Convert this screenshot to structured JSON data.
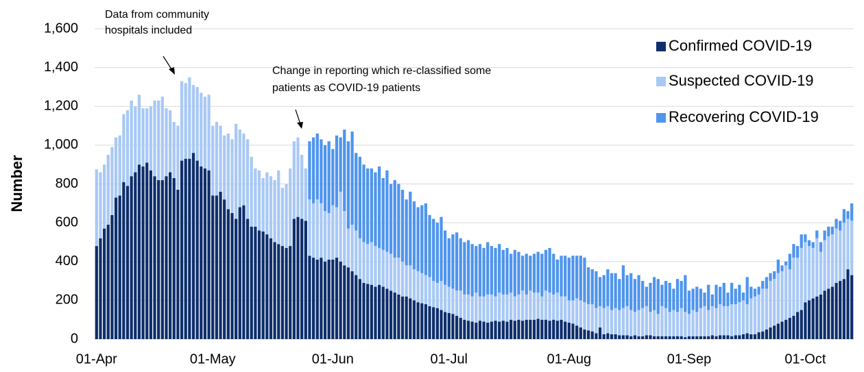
{
  "chart_data": {
    "type": "stacked_bar",
    "y_label": "Number",
    "ylim": [
      0,
      1600
    ],
    "yticks": [
      0,
      200,
      400,
      600,
      800,
      {
        "value": 1000,
        "label": "1,000"
      },
      {
        "value": 1200,
        "label": "1,200"
      },
      {
        "value": 1400,
        "label": "1,400"
      },
      {
        "value": 1600,
        "label": "1,600"
      }
    ],
    "grid": true,
    "legend": "right",
    "annotations": [
      {
        "lines": [
          "Data from community",
          "hospitals included"
        ]
      },
      {
        "lines": [
          "Change in reporting which re-classified some",
          "patients as COVID-19 patients"
        ]
      }
    ],
    "categories": [
      "01-Apr",
      null,
      null,
      null,
      null,
      null,
      null,
      null,
      null,
      null,
      null,
      null,
      null,
      null,
      null,
      null,
      null,
      null,
      null,
      null,
      null,
      null,
      null,
      null,
      null,
      null,
      null,
      null,
      null,
      null,
      "01-May",
      null,
      null,
      null,
      null,
      null,
      null,
      null,
      null,
      null,
      null,
      null,
      null,
      null,
      null,
      null,
      null,
      null,
      null,
      null,
      null,
      null,
      null,
      null,
      null,
      null,
      null,
      null,
      null,
      null,
      null,
      "01-Jun",
      null,
      null,
      null,
      null,
      null,
      null,
      null,
      null,
      null,
      null,
      null,
      null,
      null,
      null,
      null,
      null,
      null,
      null,
      null,
      null,
      null,
      null,
      null,
      null,
      null,
      null,
      null,
      null,
      null,
      "01-Jul",
      null,
      null,
      null,
      null,
      null,
      null,
      null,
      null,
      null,
      null,
      null,
      null,
      null,
      null,
      null,
      null,
      null,
      null,
      null,
      null,
      null,
      null,
      null,
      null,
      null,
      null,
      null,
      null,
      null,
      null,
      "01-Aug",
      null,
      null,
      null,
      null,
      null,
      null,
      null,
      null,
      null,
      null,
      null,
      null,
      null,
      null,
      null,
      null,
      null,
      null,
      null,
      null,
      null,
      null,
      null,
      null,
      null,
      null,
      null,
      null,
      null,
      null,
      "01-Sep",
      null,
      null,
      null,
      null,
      null,
      null,
      null,
      null,
      null,
      null,
      null,
      null,
      null,
      null,
      null,
      null,
      null,
      null,
      null,
      null,
      null,
      null,
      null,
      null,
      null,
      null,
      null,
      null,
      null,
      "01-Oct",
      null,
      null,
      null,
      null,
      null,
      null,
      null,
      null,
      null,
      null,
      null,
      null
    ],
    "series": [
      {
        "name": "Confirmed COVID-19",
        "color": "#0e2f6b",
        "values": [
          480,
          520,
          570,
          590,
          640,
          730,
          740,
          810,
          790,
          840,
          860,
          900,
          890,
          910,
          870,
          840,
          820,
          820,
          840,
          860,
          830,
          770,
          920,
          930,
          930,
          960,
          920,
          890,
          880,
          870,
          740,
          740,
          760,
          720,
          670,
          650,
          620,
          680,
          690,
          620,
          580,
          580,
          560,
          555,
          540,
          520,
          500,
          490,
          480,
          470,
          480,
          620,
          630,
          620,
          610,
          430,
          420,
          410,
          420,
          400,
          410,
          410,
          420,
          400,
          380,
          370,
          350,
          330,
          310,
          290,
          285,
          280,
          270,
          280,
          270,
          260,
          250,
          240,
          230,
          220,
          220,
          210,
          200,
          190,
          185,
          180,
          170,
          165,
          160,
          150,
          140,
          135,
          130,
          120,
          110,
          100,
          95,
          90,
          85,
          95,
          90,
          85,
          90,
          95,
          90,
          95,
          90,
          100,
          95,
          100,
          95,
          100,
          100,
          100,
          105,
          100,
          100,
          95,
          100,
          95,
          100,
          90,
          85,
          80,
          70,
          60,
          50,
          45,
          40,
          30,
          60,
          25,
          30,
          25,
          25,
          20,
          20,
          20,
          15,
          20,
          15,
          15,
          20,
          20,
          15,
          15,
          15,
          15,
          15,
          15,
          15,
          15,
          10,
          15,
          15,
          15,
          15,
          15,
          15,
          20,
          15,
          20,
          20,
          20,
          15,
          20,
          20,
          25,
          30,
          25,
          25,
          35,
          40,
          50,
          60,
          70,
          80,
          90,
          100,
          110,
          120,
          140,
          150,
          190,
          200,
          210,
          220,
          230,
          250,
          260,
          270,
          290,
          300,
          310,
          360,
          330
        ]
      },
      {
        "name": "Suspected COVID-19",
        "color": "#a9c9f5",
        "values": [
          395,
          340,
          330,
          360,
          350,
          310,
          310,
          350,
          390,
          390,
          340,
          360,
          300,
          280,
          330,
          390,
          410,
          430,
          350,
          320,
          290,
          330,
          410,
          390,
          420,
          350,
          380,
          380,
          370,
          390,
          360,
          380,
          340,
          330,
          390,
          380,
          490,
          400,
          370,
          410,
          360,
          300,
          310,
          275,
          320,
          320,
          320,
          380,
          300,
          330,
          400,
          400,
          410,
          330,
          270,
          290,
          280,
          310,
          280,
          260,
          240,
          280,
          260,
          360,
          280,
          200,
          240,
          230,
          210,
          210,
          205,
          220,
          210,
          190,
          190,
          190,
          190,
          180,
          190,
          180,
          160,
          170,
          160,
          160,
          155,
          150,
          150,
          135,
          130,
          150,
          140,
          135,
          130,
          130,
          140,
          130,
          135,
          130,
          155,
          125,
          130,
          145,
          140,
          125,
          150,
          135,
          140,
          140,
          125,
          130,
          155,
          130,
          150,
          140,
          135,
          120,
          150,
          145,
          130,
          145,
          120,
          130,
          115,
          120,
          140,
          140,
          140,
          135,
          140,
          130,
          110,
          135,
          140,
          125,
          135,
          130,
          140,
          150,
          135,
          120,
          135,
          145,
          150,
          120,
          135,
          115,
          155,
          145,
          125,
          135,
          125,
          145,
          130,
          115,
          135,
          125,
          145,
          155,
          135,
          150,
          145,
          160,
          150,
          150,
          165,
          160,
          170,
          175,
          150,
          185,
          195,
          195,
          220,
          210,
          240,
          240,
          260,
          260,
          280,
          250,
          300,
          280,
          320,
          310,
          280,
          260,
          300,
          220,
          260,
          270,
          270,
          280,
          260,
          290,
          260,
          280
        ]
      },
      {
        "name": "Recovering COVID-19",
        "color": "#4f95ee",
        "values": [
          null,
          null,
          null,
          null,
          null,
          null,
          null,
          null,
          null,
          null,
          null,
          null,
          null,
          null,
          null,
          null,
          null,
          null,
          null,
          null,
          null,
          null,
          null,
          null,
          null,
          null,
          null,
          null,
          null,
          null,
          null,
          null,
          null,
          null,
          null,
          null,
          null,
          null,
          null,
          null,
          null,
          null,
          null,
          null,
          null,
          null,
          null,
          null,
          null,
          null,
          null,
          null,
          null,
          null,
          null,
          300,
          340,
          340,
          330,
          340,
          370,
          290,
          370,
          280,
          420,
          450,
          480,
          400,
          420,
          400,
          390,
          380,
          380,
          420,
          370,
          420,
          360,
          400,
          380,
          370,
          340,
          380,
          350,
          330,
          350,
          370,
          320,
          320,
          310,
          330,
          280,
          250,
          280,
          300,
          270,
          270,
          280,
          270,
          240,
          270,
          250,
          270,
          250,
          250,
          250,
          230,
          240,
          200,
          240,
          220,
          180,
          210,
          180,
          200,
          210,
          220,
          210,
          230,
          210,
          170,
          210,
          210,
          220,
          230,
          220,
          230,
          230,
          190,
          180,
          190,
          150,
          170,
          190,
          190,
          180,
          160,
          220,
          160,
          190,
          170,
          180,
          140,
          100,
          150,
          170,
          180,
          110,
          140,
          150,
          110,
          170,
          140,
          190,
          120,
          110,
          130,
          100,
          70,
          130,
          60,
          120,
          90,
          120,
          70,
          110,
          80,
          90,
          40,
          140,
          60,
          40,
          40,
          40,
          60,
          40,
          40,
          70,
          30,
          20,
          80,
          70,
          60,
          70,
          40,
          30,
          30,
          40,
          50,
          50,
          50,
          40,
          50,
          50,
          70,
          40,
          90
        ]
      }
    ]
  }
}
